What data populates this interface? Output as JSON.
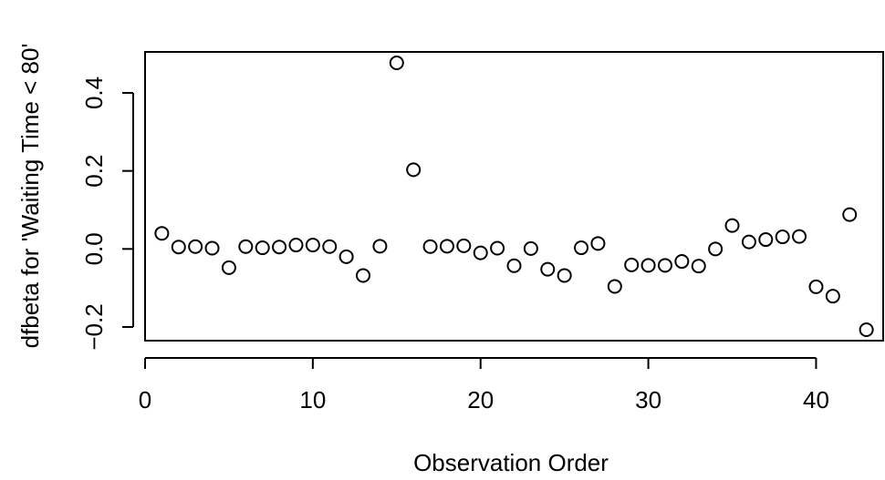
{
  "chart_data": {
    "type": "scatter",
    "title": "",
    "xlabel": "Observation Order",
    "ylabel": "dfbeta for 'Waiting Time < 80'",
    "xlim": [
      0,
      44
    ],
    "ylim": [
      -0.235,
      0.505
    ],
    "grid": false,
    "x_ticks": [
      0,
      10,
      20,
      30,
      40
    ],
    "y_ticks": [
      -0.2,
      0.0,
      0.2,
      0.4
    ],
    "x_tick_labels": [
      "0",
      "10",
      "20",
      "30",
      "40"
    ],
    "y_tick_labels": [
      "−0.2",
      "0.0",
      "0.2",
      "0.4"
    ],
    "x": [
      1,
      2,
      3,
      4,
      5,
      6,
      7,
      8,
      9,
      10,
      11,
      12,
      13,
      14,
      15,
      16,
      17,
      18,
      19,
      20,
      21,
      22,
      23,
      24,
      25,
      26,
      27,
      28,
      29,
      30,
      31,
      32,
      33,
      34,
      35,
      36,
      37,
      38,
      39,
      40,
      41,
      42,
      43
    ],
    "y": [
      0.04,
      0.005,
      0.006,
      0.002,
      -0.048,
      0.006,
      0.003,
      0.005,
      0.01,
      0.01,
      0.006,
      -0.02,
      -0.068,
      0.007,
      0.477,
      0.203,
      0.006,
      0.007,
      0.008,
      -0.01,
      0.002,
      -0.043,
      0.001,
      -0.052,
      -0.068,
      0.003,
      0.014,
      -0.096,
      -0.041,
      -0.042,
      -0.042,
      -0.032,
      -0.044,
      0.0,
      0.06,
      0.018,
      0.024,
      0.031,
      0.032,
      -0.097,
      -0.121,
      0.088,
      -0.207
    ]
  }
}
